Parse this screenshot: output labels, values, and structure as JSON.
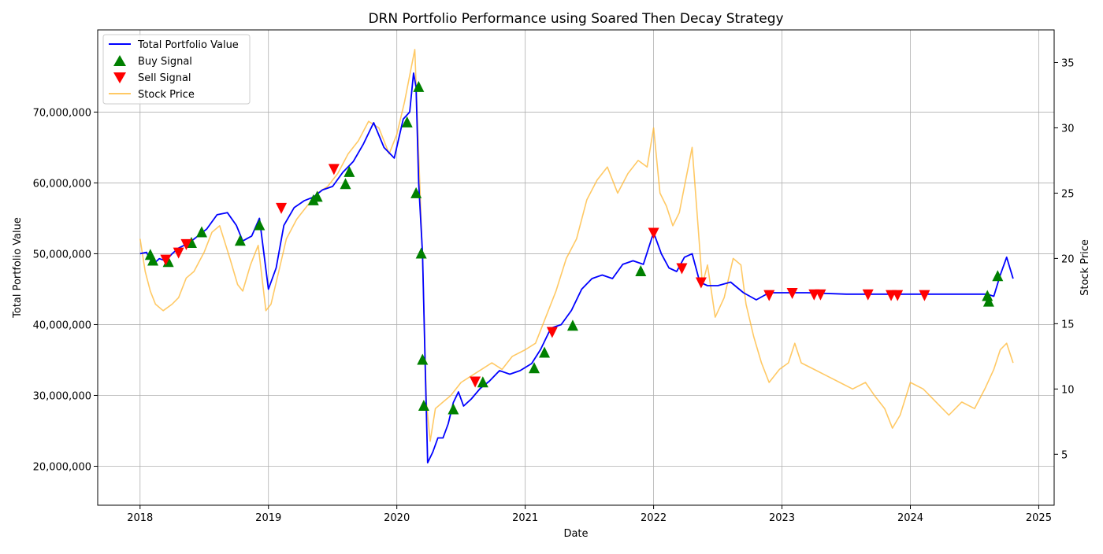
{
  "chart_data": {
    "type": "line",
    "title": "DRN Portfolio Performance using Soared Then Decay Strategy",
    "xlabel": "Date",
    "ylabel": "Total Portfolio Value",
    "y2label": "Stock Price",
    "xlim": [
      2017.67,
      2025.12
    ],
    "ylim": [
      14500000,
      81600000
    ],
    "y2lim": [
      1.1,
      37.5
    ],
    "x_ticks": [
      2018,
      2019,
      2020,
      2021,
      2022,
      2023,
      2024,
      2025
    ],
    "x_tick_labels": [
      "2018",
      "2019",
      "2020",
      "2021",
      "2022",
      "2023",
      "2024",
      "2025"
    ],
    "y_ticks": [
      20000000,
      30000000,
      40000000,
      50000000,
      60000000,
      70000000
    ],
    "y_tick_labels": [
      "20,000,000",
      "30,000,000",
      "40,000,000",
      "50,000,000",
      "60,000,000",
      "70,000,000"
    ],
    "y2_ticks": [
      5,
      10,
      15,
      20,
      25,
      30,
      35
    ],
    "y2_tick_labels": [
      "5",
      "10",
      "15",
      "20",
      "25",
      "30",
      "35"
    ],
    "grid": true,
    "legend_position": "top-left",
    "legend": [
      {
        "label": "Total Portfolio Value",
        "kind": "line",
        "color": "#0000ff"
      },
      {
        "label": "Buy Signal",
        "kind": "triangle-up",
        "color": "#008000"
      },
      {
        "label": "Sell Signal",
        "kind": "triangle-down",
        "color": "#ff0000"
      },
      {
        "label": "Stock Price",
        "kind": "line",
        "color": "#ffb732"
      }
    ],
    "series": [
      {
        "name": "Total Portfolio Value",
        "axis": "left",
        "color": "#0000ff",
        "x": [
          2018.0,
          2018.05,
          2018.1,
          2018.15,
          2018.2,
          2018.25,
          2018.3,
          2018.38,
          2018.45,
          2018.52,
          2018.6,
          2018.68,
          2018.75,
          2018.8,
          2018.87,
          2018.93,
          2019.0,
          2019.06,
          2019.12,
          2019.2,
          2019.28,
          2019.35,
          2019.42,
          2019.5,
          2019.58,
          2019.66,
          2019.74,
          2019.82,
          2019.9,
          2019.98,
          2020.05,
          2020.1,
          2020.13,
          2020.15,
          2020.17,
          2020.2,
          2020.22,
          2020.24,
          2020.28,
          2020.32,
          2020.36,
          2020.4,
          2020.44,
          2020.48,
          2020.52,
          2020.58,
          2020.65,
          2020.72,
          2020.8,
          2020.88,
          2020.96,
          2021.05,
          2021.12,
          2021.2,
          2021.28,
          2021.36,
          2021.44,
          2021.52,
          2021.6,
          2021.68,
          2021.76,
          2021.84,
          2021.92,
          2022.0,
          2022.06,
          2022.12,
          2022.18,
          2022.24,
          2022.3,
          2022.36,
          2022.42,
          2022.5,
          2022.6,
          2022.7,
          2022.8,
          2022.9,
          2023.0,
          2023.2,
          2023.5,
          2023.8,
          2024.1,
          2024.4,
          2024.6,
          2024.65,
          2024.7,
          2024.75,
          2024.8
        ],
        "values": [
          50000000,
          50200000,
          48500000,
          49300000,
          49000000,
          50000000,
          50800000,
          51500000,
          52500000,
          53500000,
          55500000,
          55800000,
          54000000,
          51800000,
          52500000,
          55000000,
          45000000,
          48000000,
          54000000,
          56500000,
          57500000,
          58000000,
          59000000,
          59500000,
          61500000,
          63000000,
          65500000,
          68500000,
          65000000,
          63500000,
          69000000,
          70000000,
          75500000,
          73500000,
          60000000,
          50000000,
          35000000,
          20500000,
          22000000,
          24000000,
          24000000,
          26000000,
          29000000,
          30500000,
          28500000,
          29500000,
          31000000,
          32000000,
          33500000,
          33000000,
          33500000,
          34500000,
          36500000,
          39500000,
          40000000,
          42000000,
          45000000,
          46500000,
          47000000,
          46500000,
          48500000,
          49000000,
          48500000,
          53000000,
          50000000,
          48000000,
          47500000,
          49500000,
          50000000,
          46000000,
          45500000,
          45500000,
          46000000,
          44500000,
          43500000,
          44500000,
          44500000,
          44500000,
          44300000,
          44300000,
          44300000,
          44300000,
          44300000,
          44000000,
          47000000,
          49500000,
          46500000
        ]
      },
      {
        "name": "Stock Price",
        "axis": "right",
        "color": "#ffb732",
        "x": [
          2018.0,
          2018.04,
          2018.08,
          2018.12,
          2018.18,
          2018.25,
          2018.3,
          2018.36,
          2018.42,
          2018.5,
          2018.56,
          2018.62,
          2018.7,
          2018.76,
          2018.8,
          2018.86,
          2018.92,
          2018.98,
          2019.02,
          2019.08,
          2019.14,
          2019.22,
          2019.3,
          2019.38,
          2019.46,
          2019.54,
          2019.62,
          2019.7,
          2019.78,
          2019.86,
          2019.94,
          2020.0,
          2020.06,
          2020.11,
          2020.14,
          2020.17,
          2020.2,
          2020.23,
          2020.26,
          2020.3,
          2020.36,
          2020.42,
          2020.5,
          2020.58,
          2020.66,
          2020.74,
          2020.82,
          2020.9,
          2021.0,
          2021.08,
          2021.16,
          2021.24,
          2021.32,
          2021.4,
          2021.48,
          2021.56,
          2021.64,
          2021.72,
          2021.8,
          2021.88,
          2021.95,
          2022.0,
          2022.05,
          2022.1,
          2022.15,
          2022.2,
          2022.25,
          2022.3,
          2022.35,
          2022.38,
          2022.42,
          2022.48,
          2022.55,
          2022.62,
          2022.68,
          2022.72,
          2022.78,
          2022.84,
          2022.9,
          2022.98,
          2023.05,
          2023.1,
          2023.15,
          2023.25,
          2023.35,
          2023.45,
          2023.55,
          2023.65,
          2023.72,
          2023.8,
          2023.86,
          2023.92,
          2024.0,
          2024.1,
          2024.2,
          2024.3,
          2024.4,
          2024.5,
          2024.58,
          2024.65,
          2024.7,
          2024.75,
          2024.8
        ],
        "values": [
          21.5,
          19.0,
          17.5,
          16.5,
          16.0,
          16.5,
          17.0,
          18.5,
          19.0,
          20.5,
          22.0,
          22.5,
          20.0,
          18.0,
          17.5,
          19.5,
          21.0,
          16.0,
          16.5,
          19.0,
          21.5,
          23.0,
          24.0,
          25.0,
          25.5,
          26.5,
          28.0,
          29.0,
          30.5,
          30.0,
          28.0,
          29.5,
          32.0,
          34.5,
          36.0,
          28.0,
          20.0,
          9.0,
          6.0,
          8.5,
          9.0,
          9.5,
          10.5,
          11.0,
          11.5,
          12.0,
          11.5,
          12.5,
          13.0,
          13.5,
          15.5,
          17.5,
          20.0,
          21.5,
          24.5,
          26.0,
          27.0,
          25.0,
          26.5,
          27.5,
          27.0,
          30.0,
          25.0,
          24.0,
          22.5,
          23.5,
          26.0,
          28.5,
          22.0,
          18.0,
          19.5,
          15.5,
          17.0,
          20.0,
          19.5,
          16.5,
          14.0,
          12.0,
          10.5,
          11.5,
          12.0,
          13.5,
          12.0,
          11.5,
          11.0,
          10.5,
          10.0,
          10.5,
          9.5,
          8.5,
          7.0,
          8.0,
          10.5,
          10.0,
          9.0,
          8.0,
          9.0,
          8.5,
          10.0,
          11.5,
          13.0,
          13.5,
          12.0
        ]
      }
    ],
    "buy_signals": {
      "x": [
        2018.08,
        2018.1,
        2018.22,
        2018.4,
        2018.48,
        2018.78,
        2018.93,
        2019.35,
        2019.38,
        2019.6,
        2019.63,
        2020.08,
        2020.17,
        2020.15,
        2020.19,
        2020.2,
        2020.21,
        2020.44,
        2020.67,
        2021.07,
        2021.15,
        2021.37,
        2021.9,
        2024.6,
        2024.61,
        2024.68
      ],
      "values": [
        49800000,
        49000000,
        48800000,
        51500000,
        53000000,
        51800000,
        54000000,
        57500000,
        58000000,
        59800000,
        61500000,
        68500000,
        73500000,
        58500000,
        50000000,
        35000000,
        28500000,
        28000000,
        31800000,
        33800000,
        36000000,
        39800000,
        47500000,
        44000000,
        43200000,
        46800000
      ]
    },
    "sell_signals": {
      "x": [
        2018.2,
        2018.3,
        2018.36,
        2019.1,
        2019.51,
        2020.61,
        2021.21,
        2022.0,
        2022.22,
        2022.37,
        2022.9,
        2023.08,
        2023.25,
        2023.3,
        2023.67,
        2023.85,
        2023.9,
        2024.11
      ],
      "values": [
        49200000,
        50200000,
        51400000,
        56500000,
        62000000,
        32000000,
        39000000,
        53000000,
        48000000,
        46000000,
        44200000,
        44500000,
        44300000,
        44300000,
        44300000,
        44200000,
        44200000,
        44200000
      ]
    }
  }
}
